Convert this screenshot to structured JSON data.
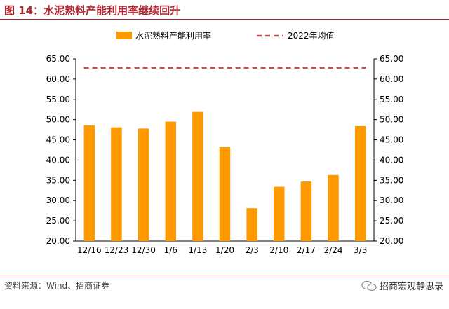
{
  "header": {
    "title": "图 14：水泥熟料产能利用率继续回升"
  },
  "footer": {
    "source": "资料来源：Wind、招商证券",
    "brand": "招商宏观静思录",
    "brand_icon": "wechat-icon"
  },
  "colors": {
    "bar": "#ff9900",
    "reference_line": "#c0504d",
    "title": "#b0282f"
  },
  "chart_data": {
    "type": "bar",
    "title": "",
    "xlabel": "",
    "ylabel": "",
    "categories": [
      "12/16",
      "12/23",
      "12/30",
      "1/6",
      "1/13",
      "1/20",
      "2/3",
      "2/10",
      "2/17",
      "2/24",
      "3/3"
    ],
    "series": [
      {
        "name": "水泥熟料产能利用率",
        "type": "bar",
        "values": [
          48.6,
          48.1,
          47.8,
          49.5,
          51.9,
          43.2,
          28.1,
          33.4,
          34.7,
          36.3,
          48.4
        ]
      }
    ],
    "reference_lines": [
      {
        "name": "2022年均值",
        "value": 62.8,
        "style": "dashed"
      }
    ],
    "ylim": [
      20,
      65
    ],
    "yticks": [
      "20.00",
      "25.00",
      "30.00",
      "35.00",
      "40.00",
      "45.00",
      "50.00",
      "55.00",
      "60.00",
      "65.00"
    ],
    "y2ticks": [
      "20.00",
      "25.00",
      "30.00",
      "35.00",
      "40.00",
      "45.00",
      "50.00",
      "55.00",
      "60.00",
      "65.00"
    ],
    "grid": false,
    "legend": "top-center"
  }
}
